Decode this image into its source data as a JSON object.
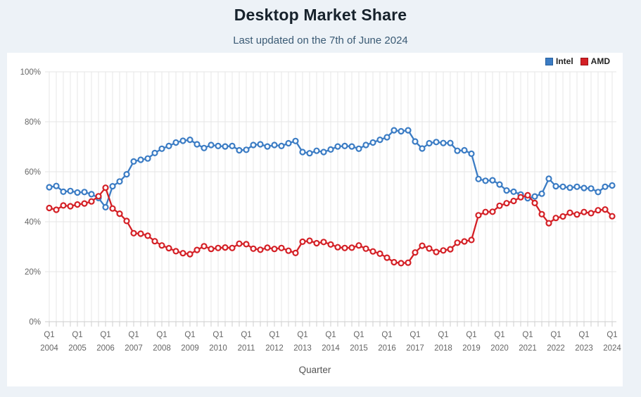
{
  "header": {
    "title": "Desktop Market Share",
    "subtitle": "Last updated on the 7th of June 2024"
  },
  "legend": [
    {
      "label": "Intel",
      "color": "#3b7cc4"
    },
    {
      "label": "AMD",
      "color": "#d42026"
    }
  ],
  "chart_data": {
    "type": "line",
    "title": "Desktop Market Share",
    "subtitle": "Last updated on the 7th of June 2024",
    "xlabel": "Quarter",
    "ylabel": "",
    "ylim": [
      0,
      100
    ],
    "y_ticks": [
      "0%",
      "20%",
      "40%",
      "60%",
      "80%",
      "100%"
    ],
    "grid": true,
    "legend_position": "top-right",
    "x_tick_every": 4,
    "categories": [
      "Q1 2004",
      "Q2 2004",
      "Q3 2004",
      "Q4 2004",
      "Q1 2005",
      "Q2 2005",
      "Q3 2005",
      "Q4 2005",
      "Q1 2006",
      "Q2 2006",
      "Q3 2006",
      "Q4 2006",
      "Q1 2007",
      "Q2 2007",
      "Q3 2007",
      "Q4 2007",
      "Q1 2008",
      "Q2 2008",
      "Q3 2008",
      "Q4 2008",
      "Q1 2009",
      "Q2 2009",
      "Q3 2009",
      "Q4 2009",
      "Q1 2010",
      "Q2 2010",
      "Q3 2010",
      "Q4 2010",
      "Q1 2011",
      "Q2 2011",
      "Q3 2011",
      "Q4 2011",
      "Q1 2012",
      "Q2 2012",
      "Q3 2012",
      "Q4 2012",
      "Q1 2013",
      "Q2 2013",
      "Q3 2013",
      "Q4 2013",
      "Q1 2014",
      "Q2 2014",
      "Q3 2014",
      "Q4 2014",
      "Q1 2015",
      "Q2 2015",
      "Q3 2015",
      "Q4 2015",
      "Q1 2016",
      "Q2 2016",
      "Q3 2016",
      "Q4 2016",
      "Q1 2017",
      "Q2 2017",
      "Q3 2017",
      "Q4 2017",
      "Q1 2018",
      "Q2 2018",
      "Q3 2018",
      "Q4 2018",
      "Q1 2019",
      "Q2 2019",
      "Q3 2019",
      "Q4 2019",
      "Q1 2020",
      "Q2 2020",
      "Q3 2020",
      "Q4 2020",
      "Q1 2021",
      "Q2 2021",
      "Q3 2021",
      "Q4 2021",
      "Q1 2022",
      "Q2 2022",
      "Q3 2022",
      "Q4 2022",
      "Q1 2023",
      "Q2 2023",
      "Q3 2023",
      "Q4 2023",
      "Q1 2024"
    ],
    "series": [
      {
        "name": "Intel",
        "color": "#3b7cc4",
        "values": [
          53.8,
          54.3,
          52.0,
          52.3,
          51.7,
          51.9,
          51.0,
          49.5,
          45.8,
          54.2,
          56.1,
          59.0,
          64.1,
          64.8,
          65.3,
          67.5,
          69.2,
          70.3,
          71.7,
          72.4,
          72.8,
          71.0,
          69.5,
          70.7,
          70.3,
          70.1,
          70.3,
          68.6,
          68.8,
          70.7,
          71.0,
          70.1,
          70.7,
          70.3,
          71.4,
          72.3,
          67.9,
          67.4,
          68.4,
          67.9,
          68.9,
          70.1,
          70.3,
          70.1,
          69.2,
          70.7,
          71.7,
          72.8,
          73.8,
          76.6,
          76.2,
          76.6,
          72.1,
          69.3,
          71.4,
          71.9,
          71.5,
          71.5,
          68.4,
          68.6,
          67.2,
          57.1,
          56.4,
          56.6,
          54.9,
          52.5,
          52.0,
          50.9,
          49.4,
          50.1,
          51.2,
          57.2,
          54.2,
          54.0,
          53.6,
          54.0,
          53.5,
          53.3,
          51.9,
          54.0,
          54.5
        ]
      },
      {
        "name": "AMD",
        "color": "#d42026",
        "values": [
          45.5,
          44.8,
          46.5,
          46.2,
          46.9,
          47.3,
          48.1,
          50.2,
          53.6,
          45.3,
          43.2,
          40.3,
          35.4,
          35.2,
          34.4,
          32.2,
          30.5,
          29.4,
          28.2,
          27.4,
          27.0,
          28.7,
          30.2,
          29.1,
          29.5,
          29.7,
          29.5,
          31.2,
          31.0,
          29.2,
          28.8,
          29.6,
          29.1,
          29.5,
          28.4,
          27.5,
          32.0,
          32.4,
          31.4,
          31.9,
          30.9,
          29.8,
          29.5,
          29.6,
          30.5,
          29.2,
          28.1,
          27.2,
          25.6,
          23.8,
          23.4,
          23.6,
          27.7,
          30.4,
          29.3,
          27.9,
          28.5,
          29.0,
          31.6,
          32.1,
          32.7,
          42.6,
          43.9,
          44.0,
          46.4,
          47.4,
          48.3,
          49.8,
          50.6,
          47.5,
          43.0,
          39.4,
          41.5,
          42.1,
          43.6,
          42.9,
          43.9,
          43.4,
          44.6,
          44.9,
          42.2
        ]
      }
    ]
  }
}
